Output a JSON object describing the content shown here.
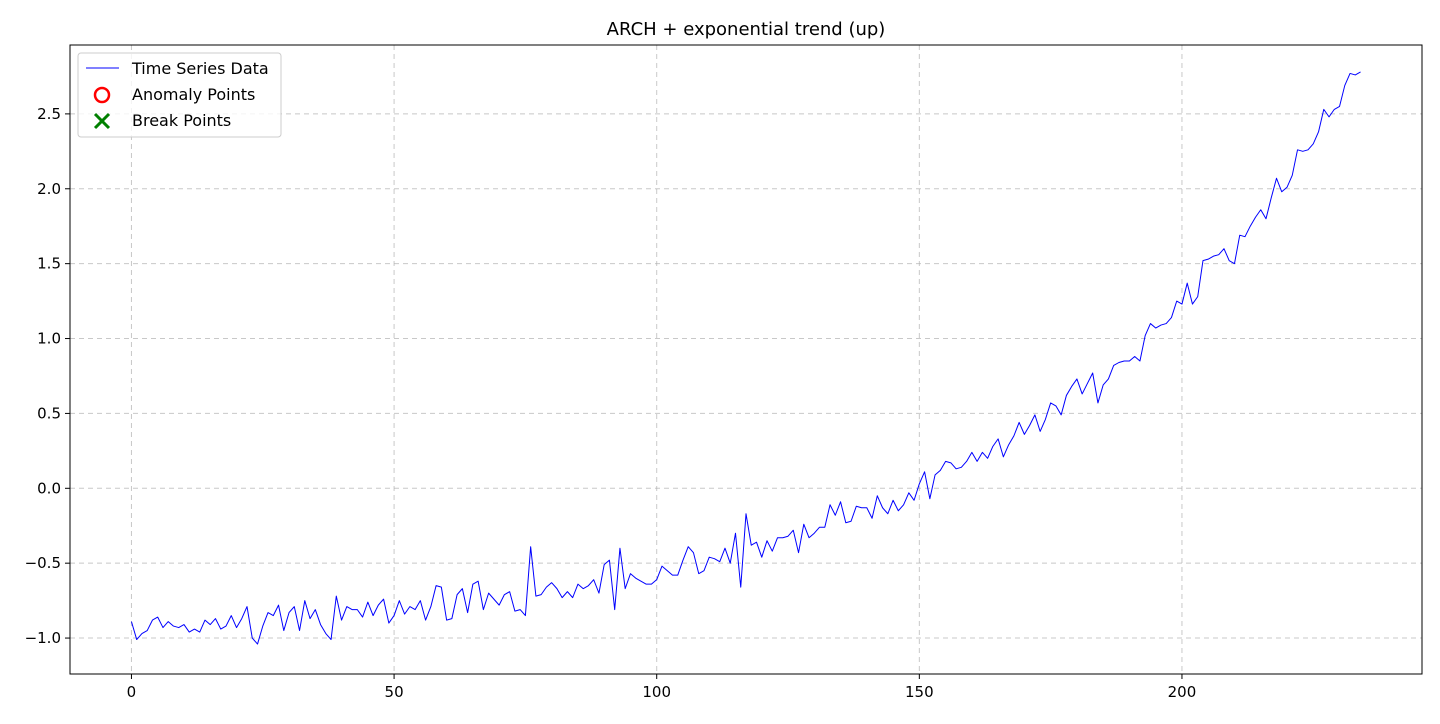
{
  "chart_data": {
    "type": "line",
    "title": "ARCH + exponential trend (up)",
    "xlabel": "",
    "ylabel": "",
    "xlim": [
      -11.7,
      245.7
    ],
    "ylim": [
      -1.24,
      2.96
    ],
    "x_ticks": [
      0,
      50,
      100,
      150,
      200
    ],
    "x_tick_labels": [
      "0",
      "50",
      "100",
      "150",
      "200"
    ],
    "y_ticks": [
      -1.0,
      -0.5,
      0.0,
      0.5,
      1.0,
      1.5,
      2.0,
      2.5
    ],
    "y_tick_labels": [
      "−1.0",
      "−0.5",
      "0.0",
      "0.5",
      "1.0",
      "1.5",
      "2.0",
      "2.5"
    ],
    "grid": true,
    "legend": {
      "position": "top-left",
      "entries": [
        {
          "label": "Time Series Data",
          "marker": "line",
          "color": "#0000ff"
        },
        {
          "label": "Anomaly Points",
          "marker": "circle",
          "color": "#ff0000"
        },
        {
          "label": "Break Points",
          "marker": "x",
          "color": "#008000"
        }
      ]
    },
    "series": [
      {
        "name": "Time Series Data",
        "color": "#0000ff",
        "x_start": 0,
        "x_step": 1,
        "values": [
          -0.89,
          -1.01,
          -0.97,
          -0.95,
          -0.88,
          -0.86,
          -0.93,
          -0.89,
          -0.92,
          -0.93,
          -0.91,
          -0.96,
          -0.94,
          -0.96,
          -0.88,
          -0.91,
          -0.87,
          -0.94,
          -0.92,
          -0.85,
          -0.93,
          -0.87,
          -0.79,
          -1.0,
          -1.04,
          -0.92,
          -0.83,
          -0.85,
          -0.78,
          -0.95,
          -0.83,
          -0.79,
          -0.95,
          -0.75,
          -0.87,
          -0.81,
          -0.91,
          -0.97,
          -1.01,
          -0.72,
          -0.88,
          -0.79,
          -0.81,
          -0.81,
          -0.86,
          -0.76,
          -0.85,
          -0.78,
          -0.74,
          -0.9,
          -0.85,
          -0.75,
          -0.84,
          -0.79,
          -0.81,
          -0.75,
          -0.88,
          -0.79,
          -0.65,
          -0.66,
          -0.88,
          -0.87,
          -0.71,
          -0.67,
          -0.83,
          -0.64,
          -0.62,
          -0.81,
          -0.7,
          -0.74,
          -0.78,
          -0.71,
          -0.69,
          -0.82,
          -0.81,
          -0.85,
          -0.39,
          -0.72,
          -0.71,
          -0.66,
          -0.63,
          -0.67,
          -0.73,
          -0.69,
          -0.73,
          -0.64,
          -0.67,
          -0.65,
          -0.61,
          -0.7,
          -0.51,
          -0.48,
          -0.81,
          -0.4,
          -0.67,
          -0.57,
          -0.6,
          -0.62,
          -0.64,
          -0.64,
          -0.61,
          -0.52,
          -0.55,
          -0.58,
          -0.58,
          -0.48,
          -0.39,
          -0.43,
          -0.57,
          -0.55,
          -0.46,
          -0.47,
          -0.49,
          -0.4,
          -0.5,
          -0.3,
          -0.66,
          -0.17,
          -0.38,
          -0.36,
          -0.46,
          -0.35,
          -0.42,
          -0.33,
          -0.33,
          -0.32,
          -0.28,
          -0.43,
          -0.24,
          -0.33,
          -0.3,
          -0.26,
          -0.26,
          -0.11,
          -0.18,
          -0.09,
          -0.23,
          -0.22,
          -0.12,
          -0.13,
          -0.13,
          -0.2,
          -0.05,
          -0.13,
          -0.17,
          -0.08,
          -0.15,
          -0.11,
          -0.03,
          -0.08,
          0.03,
          0.11,
          -0.07,
          0.09,
          0.12,
          0.18,
          0.17,
          0.13,
          0.14,
          0.18,
          0.24,
          0.18,
          0.24,
          0.2,
          0.28,
          0.33,
          0.21,
          0.29,
          0.35,
          0.44,
          0.36,
          0.42,
          0.49,
          0.38,
          0.46,
          0.57,
          0.55,
          0.49,
          0.62,
          0.68,
          0.73,
          0.63,
          0.7,
          0.77,
          0.57,
          0.69,
          0.73,
          0.82,
          0.84,
          0.85,
          0.85,
          0.88,
          0.85,
          1.02,
          1.1,
          1.07,
          1.09,
          1.1,
          1.14,
          1.25,
          1.23,
          1.37,
          1.23,
          1.28,
          1.52,
          1.53,
          1.55,
          1.56,
          1.6,
          1.52,
          1.5,
          1.69,
          1.68,
          1.75,
          1.81,
          1.86,
          1.8,
          1.94,
          2.07,
          1.98,
          2.01,
          2.09,
          2.26,
          2.25,
          2.26,
          2.3,
          2.38,
          2.53,
          2.48,
          2.53,
          2.55,
          2.69,
          2.77,
          2.76,
          2.78
        ]
      }
    ],
    "anomaly_points": [],
    "break_points": []
  }
}
